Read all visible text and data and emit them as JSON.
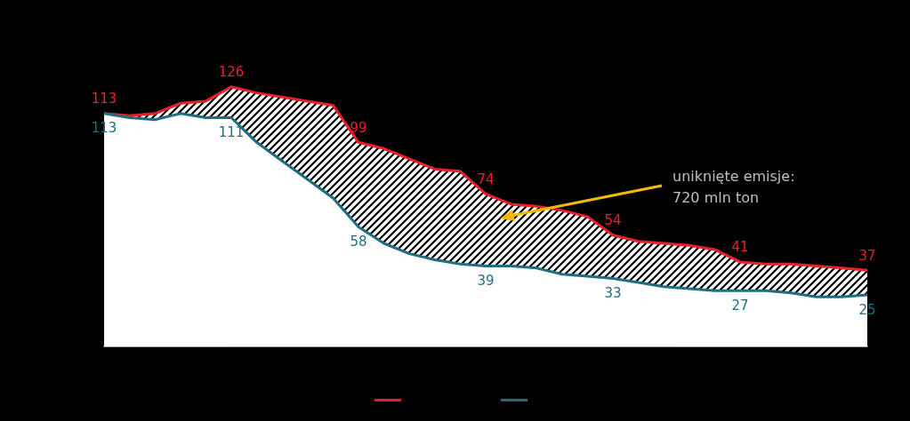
{
  "chart_data": {
    "type": "area",
    "categories": [
      null,
      null,
      null,
      null,
      null,
      null,
      null,
      null,
      null,
      null,
      null,
      null,
      null,
      null,
      null,
      null,
      null,
      null,
      null,
      null,
      null,
      null,
      null,
      null,
      null,
      null,
      null,
      null,
      null,
      null,
      null
    ],
    "series": [
      {
        "color": "#e8202a",
        "values": [
          113,
          112,
          113,
          118,
          119,
          126,
          123,
          121,
          119,
          117,
          99,
          96,
          91,
          86,
          85,
          74,
          69,
          68,
          66,
          63,
          54,
          51,
          50,
          49,
          47,
          41,
          40,
          40,
          39,
          38,
          37
        ],
        "value_labels": [
          "113",
          null,
          null,
          null,
          null,
          "126",
          null,
          null,
          null,
          null,
          "99",
          null,
          null,
          null,
          null,
          "74",
          null,
          null,
          null,
          null,
          "54",
          null,
          null,
          null,
          null,
          "41",
          null,
          null,
          null,
          null,
          "37"
        ]
      },
      {
        "color": "#1f6e80",
        "values": [
          113,
          111,
          110,
          113,
          111,
          111,
          99,
          90,
          81,
          72,
          58,
          50,
          45,
          42,
          40,
          39,
          39,
          38,
          35,
          34,
          33,
          31,
          29,
          28,
          27,
          27,
          27,
          26,
          24,
          24,
          25
        ],
        "value_labels": [
          "113",
          null,
          null,
          null,
          null,
          "111",
          null,
          null,
          null,
          null,
          "58",
          null,
          null,
          null,
          null,
          "39",
          null,
          null,
          null,
          null,
          "33",
          null,
          null,
          null,
          null,
          "27",
          null,
          null,
          null,
          null,
          "25"
        ]
      }
    ],
    "annotations": [
      "uniknięte emisje:\n720 mln ton"
    ],
    "grid": false,
    "line_style": "solid"
  }
}
